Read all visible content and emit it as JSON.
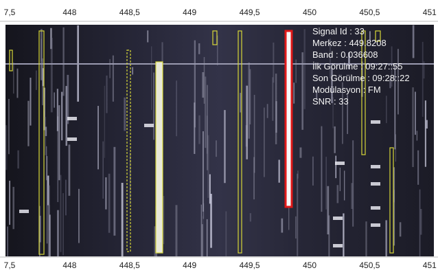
{
  "axis": {
    "ticks": [
      "7,5",
      "448",
      "448,5",
      "449",
      "449,5",
      "450",
      "450,5",
      "451"
    ]
  },
  "info": {
    "lines": [
      "Signal Id : 33",
      "Merkez : 449.8208",
      "Band : 0.036608",
      "İlk Görülme : 09:27::55",
      "Son Görülme : 09:28::22",
      "Modülasyon : FM",
      "SNR : 33"
    ]
  }
}
